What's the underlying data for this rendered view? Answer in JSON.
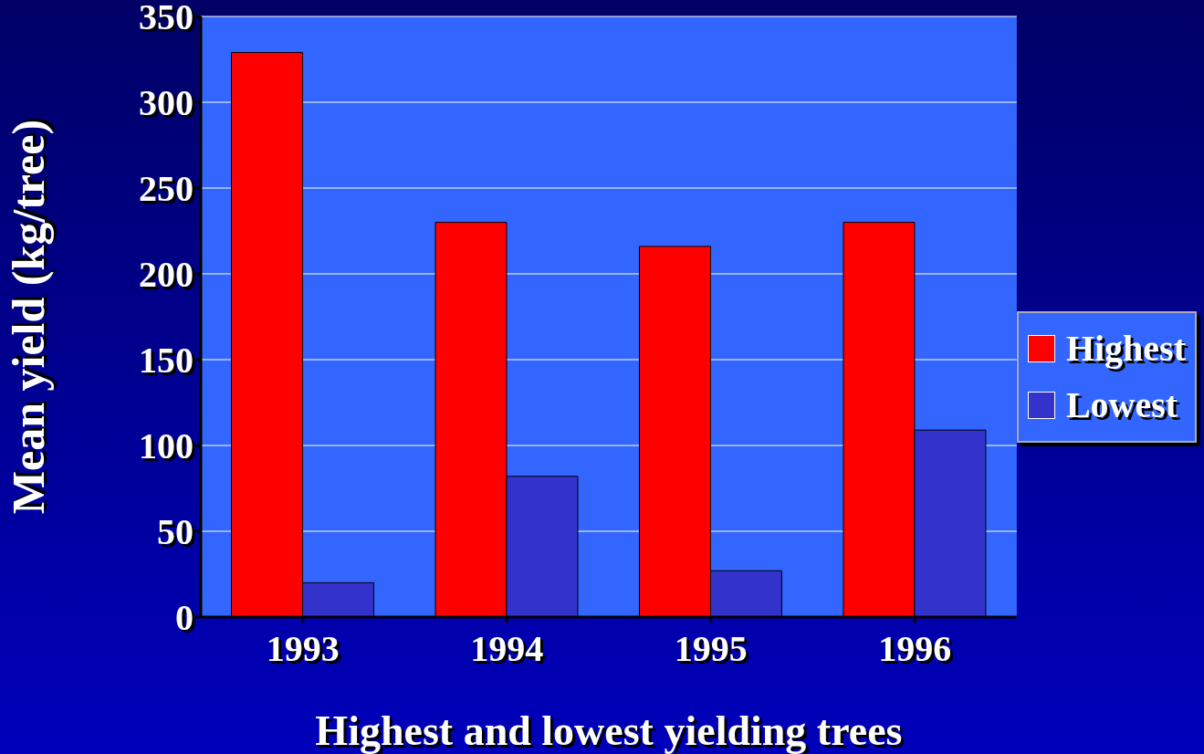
{
  "chart_data": {
    "type": "bar",
    "xlabel": "Highest and lowest yielding trees",
    "ylabel": "Mean yield (kg/tree)",
    "categories": [
      "1993",
      "1994",
      "1995",
      "1996"
    ],
    "series": [
      {
        "name": "Highest",
        "color": "#ff0000",
        "values": [
          329,
          230,
          216,
          230
        ]
      },
      {
        "name": "Lowest",
        "color": "#3333cc",
        "values": [
          20,
          82,
          27,
          109
        ]
      }
    ],
    "ylim": [
      0,
      350
    ],
    "yticks": [
      0,
      50,
      100,
      150,
      200,
      250,
      300,
      350
    ],
    "grid": "y",
    "legend": "right"
  }
}
